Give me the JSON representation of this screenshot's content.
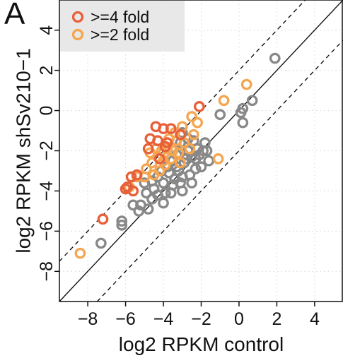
{
  "panel_label": "A",
  "chart_data": {
    "type": "scatter",
    "xlabel": "log2 RPKM control",
    "ylabel": "log2 RPKM shSv210−1",
    "xlim": [
      -9.5,
      5.5
    ],
    "ylim": [
      -9.5,
      5.5
    ],
    "xticks": [
      -8,
      -6,
      -4,
      -2,
      0,
      2,
      4
    ],
    "yticks": [
      -8,
      -6,
      -4,
      -2,
      0,
      2,
      4
    ],
    "xtick_labels": [
      "−8",
      "−6",
      "−4",
      "−2",
      "0",
      "2",
      "4"
    ],
    "ytick_labels": [
      "−8",
      "−6",
      "−4",
      "−2",
      "0",
      "2",
      "4"
    ],
    "grid": true,
    "legend_position": "top-left",
    "reference_lines": [
      {
        "slope": 1,
        "intercept": 0,
        "style": "solid"
      },
      {
        "slope": 1,
        "intercept": 2,
        "style": "dashed"
      },
      {
        "slope": 1,
        "intercept": -2,
        "style": "dashed"
      }
    ],
    "series": [
      {
        "color": "#888888",
        "points": [
          [
            1.9,
            2.6
          ],
          [
            0.7,
            0.5
          ],
          [
            0.2,
            0.1
          ],
          [
            0.1,
            -0.1
          ],
          [
            0.2,
            -0.6
          ],
          [
            -1.0,
            -0.2
          ],
          [
            -1.7,
            -2.0
          ],
          [
            -1.6,
            -2.5
          ],
          [
            -2.3,
            -2.9
          ],
          [
            -2.0,
            -2.8
          ],
          [
            -2.6,
            -3.2
          ],
          [
            -3.0,
            -3.3
          ],
          [
            -3.2,
            -3.0
          ],
          [
            -3.5,
            -3.7
          ],
          [
            -2.5,
            -3.6
          ],
          [
            -3.0,
            -4.0
          ],
          [
            -3.6,
            -4.1
          ],
          [
            -4.0,
            -4.6
          ],
          [
            -4.3,
            -4.2
          ],
          [
            -4.6,
            -4.4
          ],
          [
            -4.8,
            -4.9
          ],
          [
            -5.2,
            -4.7
          ],
          [
            -5.3,
            -5.0
          ],
          [
            -5.6,
            -4.7
          ],
          [
            -6.2,
            -5.5
          ],
          [
            -6.2,
            -5.7
          ],
          [
            -7.3,
            -6.6
          ],
          [
            -3.0,
            -1.1
          ],
          [
            -2.7,
            -1.4
          ],
          [
            -3.1,
            -1.6
          ],
          [
            -2.4,
            -1.5
          ],
          [
            -2.2,
            -1.9
          ],
          [
            -1.8,
            -1.6
          ],
          [
            -2.7,
            -2.0
          ],
          [
            -3.3,
            -2.2
          ],
          [
            -3.5,
            -2.5
          ],
          [
            -3.8,
            -2.8
          ],
          [
            -4.1,
            -3.0
          ],
          [
            -4.3,
            -3.3
          ],
          [
            -4.6,
            -3.5
          ],
          [
            -4.0,
            -3.6
          ],
          [
            -3.4,
            -3.4
          ],
          [
            -2.9,
            -2.6
          ],
          [
            -2.5,
            -2.3
          ],
          [
            -2.1,
            -2.2
          ],
          [
            -3.7,
            -3.1
          ],
          [
            -4.5,
            -3.9
          ],
          [
            -4.9,
            -4.1
          ],
          [
            -5.0,
            -3.6
          ],
          [
            -3.3,
            -2.8
          ],
          [
            -2.8,
            -2.4
          ],
          [
            -2.3,
            -2.4
          ],
          [
            -1.9,
            -2.0
          ],
          [
            -3.9,
            -4.1
          ],
          [
            -3.1,
            -3.6
          ]
        ]
      },
      {
        "name": ">=2 fold",
        "color": "#f5a54f",
        "points": [
          [
            0.4,
            1.3
          ],
          [
            -0.8,
            0.5
          ],
          [
            -2.5,
            -0.3
          ],
          [
            -2.2,
            -0.6
          ],
          [
            -3.0,
            -0.8
          ],
          [
            -3.4,
            -1.1
          ],
          [
            -3.7,
            -1.4
          ],
          [
            -3.8,
            -1.9
          ],
          [
            -4.1,
            -2.0
          ],
          [
            -4.3,
            -2.3
          ],
          [
            -4.6,
            -2.6
          ],
          [
            -4.9,
            -2.9
          ],
          [
            -5.0,
            -3.3
          ],
          [
            -5.4,
            -3.3
          ],
          [
            -5.8,
            -3.8
          ],
          [
            -4.2,
            -3.0
          ],
          [
            -3.6,
            -2.4
          ],
          [
            -3.2,
            -2.1
          ],
          [
            -2.9,
            -1.6
          ],
          [
            -2.6,
            -1.9
          ],
          [
            -3.9,
            -2.7
          ],
          [
            -4.4,
            -1.9
          ],
          [
            -4.7,
            -2.1
          ],
          [
            -3.5,
            -2.0
          ],
          [
            -4.0,
            -2.5
          ],
          [
            -4.5,
            -3.2
          ],
          [
            -1.1,
            -2.4
          ],
          [
            -8.4,
            -7.1
          ],
          [
            -3.3,
            -1.5
          ],
          [
            -2.4,
            -1.2
          ],
          [
            -3.1,
            -2.6
          ]
        ]
      },
      {
        "name": ">=4 fold",
        "color": "#e8603a",
        "points": [
          [
            -2.1,
            0.2
          ],
          [
            -4.4,
            -0.8
          ],
          [
            -4.0,
            -0.9
          ],
          [
            -3.6,
            -0.9
          ],
          [
            -3.1,
            -1.2
          ],
          [
            -4.3,
            -1.5
          ],
          [
            -4.7,
            -1.4
          ],
          [
            -3.9,
            -1.8
          ],
          [
            -4.2,
            -2.4
          ],
          [
            -5.7,
            -3.3
          ],
          [
            -5.4,
            -3.2
          ],
          [
            -5.9,
            -3.8
          ],
          [
            -6.0,
            -3.9
          ],
          [
            -5.6,
            -4.0
          ],
          [
            -7.2,
            -5.4
          ],
          [
            -3.8,
            -1.6
          ],
          [
            -4.8,
            -1.9
          ]
        ]
      }
    ],
    "legend": [
      {
        "label": ">=4 fold",
        "color": "#e8603a"
      },
      {
        "label": ">=2 fold",
        "color": "#f5a54f"
      }
    ]
  }
}
